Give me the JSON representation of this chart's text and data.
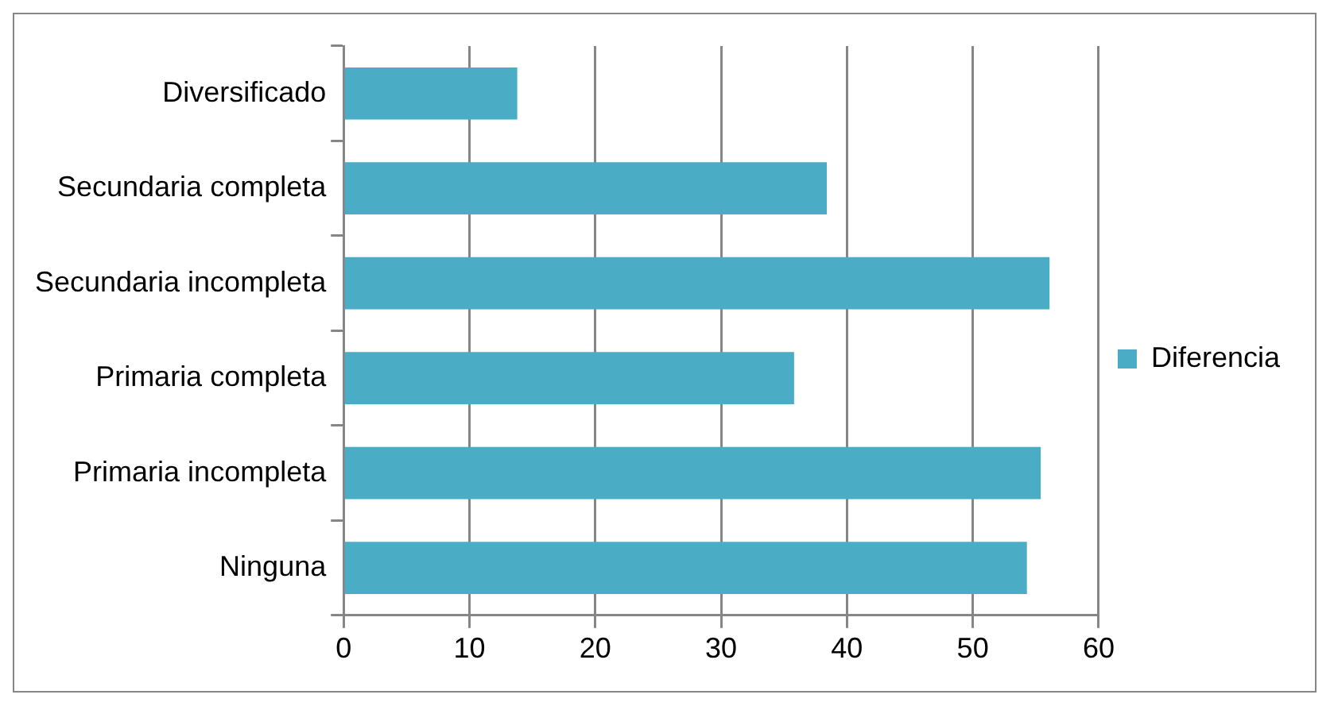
{
  "chart_data": {
    "type": "bar",
    "orientation": "horizontal",
    "categories": [
      "Diversificado",
      "Secundaria completa",
      "Secundaria incompleta",
      "Primaria completa",
      "Primaria incompleta",
      "Ninguna"
    ],
    "series": [
      {
        "name": "Diferencia",
        "color": "#4bacc6",
        "values": [
          13.8,
          38.4,
          56.1,
          35.8,
          55.4,
          54.3
        ]
      }
    ],
    "xlim": [
      0,
      60
    ],
    "xticks": [
      0,
      10,
      20,
      30,
      40,
      50,
      60
    ],
    "grid": "x",
    "legend": "right"
  }
}
